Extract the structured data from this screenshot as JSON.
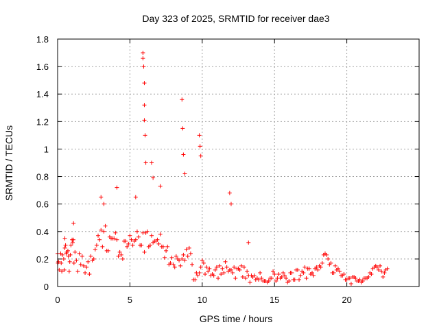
{
  "chart_data": {
    "type": "scatter",
    "title": "Day 323 of 2025, SRMTID for receiver dae3",
    "xlabel": "GPS time / hours",
    "ylabel": "SRMTID / TECUs",
    "xlim": [
      0,
      25
    ],
    "ylim": [
      0,
      1.8
    ],
    "xticks": [
      0,
      5,
      10,
      15,
      20
    ],
    "xtick_labels": [
      "0",
      "5",
      "10",
      "15",
      "20"
    ],
    "yticks": [
      0,
      0.2,
      0.4,
      0.6,
      0.8,
      1.0,
      1.2,
      1.4,
      1.6,
      1.8
    ],
    "ytick_labels": [
      "0",
      "0.2",
      "0.4",
      "0.6",
      "0.8",
      "1",
      "1.2",
      "1.4",
      "1.6",
      "1.8"
    ],
    "grid": true,
    "marker": "+",
    "series": [
      {
        "name": "SRMTID",
        "color": "#ff0000",
        "profile": [
          [
            0.0,
            0.2
          ],
          [
            0.5,
            0.22
          ],
          [
            1.0,
            0.25
          ],
          [
            1.5,
            0.2
          ],
          [
            2.0,
            0.15
          ],
          [
            2.5,
            0.2
          ],
          [
            3.0,
            0.35
          ],
          [
            3.5,
            0.32
          ],
          [
            4.0,
            0.28
          ],
          [
            4.5,
            0.25
          ],
          [
            5.0,
            0.3
          ],
          [
            5.5,
            0.3
          ],
          [
            6.0,
            0.35
          ],
          [
            6.5,
            0.32
          ],
          [
            7.0,
            0.35
          ],
          [
            7.5,
            0.2
          ],
          [
            8.0,
            0.17
          ],
          [
            8.5,
            0.15
          ],
          [
            9.0,
            0.25
          ],
          [
            9.5,
            0.05
          ],
          [
            10.0,
            0.15
          ],
          [
            10.5,
            0.08
          ],
          [
            11.0,
            0.1
          ],
          [
            11.5,
            0.12
          ],
          [
            12.0,
            0.1
          ],
          [
            13.0,
            0.07
          ],
          [
            14.0,
            0.05
          ],
          [
            15.0,
            0.07
          ],
          [
            16.0,
            0.08
          ],
          [
            17.0,
            0.1
          ],
          [
            18.0,
            0.12
          ],
          [
            18.5,
            0.18
          ],
          [
            19.0,
            0.12
          ],
          [
            19.5,
            0.1
          ],
          [
            20.0,
            0.06
          ],
          [
            21.0,
            0.05
          ],
          [
            21.5,
            0.08
          ],
          [
            22.0,
            0.15
          ],
          [
            22.3,
            0.12
          ],
          [
            22.8,
            0.1
          ]
        ],
        "spikes": [
          [
            0.0,
            0.24
          ],
          [
            0.5,
            0.35
          ],
          [
            1.1,
            0.46
          ],
          [
            3.0,
            0.65
          ],
          [
            3.2,
            0.6
          ],
          [
            4.1,
            0.72
          ],
          [
            5.4,
            0.65
          ],
          [
            5.9,
            1.7
          ],
          [
            5.9,
            1.66
          ],
          [
            5.95,
            1.6
          ],
          [
            6.0,
            1.48
          ],
          [
            6.0,
            1.32
          ],
          [
            6.0,
            1.21
          ],
          [
            6.05,
            1.1
          ],
          [
            6.1,
            0.9
          ],
          [
            6.5,
            0.9
          ],
          [
            6.6,
            0.79
          ],
          [
            7.1,
            0.73
          ],
          [
            8.6,
            1.36
          ],
          [
            8.65,
            1.15
          ],
          [
            8.7,
            0.96
          ],
          [
            8.8,
            0.82
          ],
          [
            9.8,
            1.1
          ],
          [
            9.85,
            1.02
          ],
          [
            9.9,
            0.95
          ],
          [
            11.9,
            0.68
          ],
          [
            12.0,
            0.6
          ],
          [
            13.2,
            0.32
          ]
        ],
        "points": [
          [
            0.02,
            0.17
          ],
          [
            0.06,
            0.18
          ],
          [
            0.11,
            0.12
          ],
          [
            0.21,
            0.24
          ],
          [
            0.25,
            0.17
          ],
          [
            0.29,
            0.11
          ],
          [
            0.33,
            0.23
          ],
          [
            0.42,
            0.2
          ],
          [
            0.46,
            0.12
          ],
          [
            0.5,
            0.28
          ],
          [
            0.55,
            0.3
          ],
          [
            0.59,
            0.24
          ],
          [
            0.63,
            0.25
          ],
          [
            0.71,
            0.26
          ],
          [
            0.75,
            0.22
          ],
          [
            0.8,
            0.11
          ],
          [
            0.84,
            0.18
          ],
          [
            0.88,
            0.23
          ],
          [
            0.92,
            0.3
          ],
          [
            1.0,
            0.34
          ],
          [
            1.04,
            0.32
          ],
          [
            1.09,
            0.34
          ],
          [
            1.13,
            0.17
          ],
          [
            1.2,
            0.25
          ],
          [
            1.3,
            0.19
          ],
          [
            1.4,
            0.11
          ],
          [
            1.5,
            0.24
          ],
          [
            1.6,
            0.16
          ],
          [
            1.7,
            0.22
          ],
          [
            1.8,
            0.15
          ],
          [
            1.9,
            0.1
          ],
          [
            2.0,
            0.14
          ],
          [
            2.1,
            0.18
          ],
          [
            2.2,
            0.09
          ],
          [
            2.3,
            0.22
          ],
          [
            2.4,
            0.19
          ],
          [
            2.5,
            0.2
          ],
          [
            2.6,
            0.27
          ],
          [
            2.7,
            0.3
          ],
          [
            2.8,
            0.37
          ],
          [
            2.9,
            0.34
          ],
          [
            3.0,
            0.41
          ],
          [
            3.1,
            0.29
          ],
          [
            3.2,
            0.4
          ],
          [
            3.3,
            0.44
          ],
          [
            3.4,
            0.26
          ],
          [
            3.5,
            0.26
          ],
          [
            3.6,
            0.36
          ],
          [
            3.7,
            0.35
          ],
          [
            3.8,
            0.35
          ],
          [
            3.9,
            0.35
          ],
          [
            4.0,
            0.39
          ],
          [
            4.1,
            0.34
          ],
          [
            4.2,
            0.22
          ],
          [
            4.3,
            0.25
          ],
          [
            4.4,
            0.23
          ],
          [
            4.5,
            0.2
          ],
          [
            4.6,
            0.33
          ],
          [
            4.7,
            0.33
          ],
          [
            4.8,
            0.29
          ],
          [
            4.9,
            0.31
          ],
          [
            5.0,
            0.37
          ],
          [
            5.1,
            0.34
          ],
          [
            5.2,
            0.3
          ],
          [
            5.3,
            0.33
          ],
          [
            5.4,
            0.34
          ],
          [
            5.5,
            0.4
          ],
          [
            5.6,
            0.36
          ],
          [
            5.7,
            0.3
          ],
          [
            5.8,
            0.3
          ],
          [
            5.9,
            0.39
          ],
          [
            6.0,
            0.25
          ],
          [
            6.1,
            0.39
          ],
          [
            6.2,
            0.4
          ],
          [
            6.3,
            0.29
          ],
          [
            6.4,
            0.3
          ],
          [
            6.5,
            0.37
          ],
          [
            6.6,
            0.32
          ],
          [
            6.7,
            0.33
          ],
          [
            6.8,
            0.33
          ],
          [
            6.9,
            0.34
          ],
          [
            7.0,
            0.31
          ],
          [
            7.1,
            0.38
          ],
          [
            7.2,
            0.29
          ],
          [
            7.3,
            0.29
          ],
          [
            7.4,
            0.21
          ],
          [
            7.5,
            0.26
          ],
          [
            7.6,
            0.29
          ],
          [
            7.7,
            0.16
          ],
          [
            7.8,
            0.17
          ],
          [
            7.9,
            0.21
          ],
          [
            8.0,
            0.16
          ],
          [
            8.1,
            0.14
          ],
          [
            8.2,
            0.22
          ],
          [
            8.3,
            0.2
          ],
          [
            8.4,
            0.19
          ],
          [
            8.5,
            0.15
          ],
          [
            8.6,
            0.2
          ],
          [
            8.7,
            0.23
          ],
          [
            8.8,
            0.19
          ],
          [
            8.9,
            0.27
          ],
          [
            9.0,
            0.22
          ],
          [
            9.1,
            0.28
          ],
          [
            9.2,
            0.24
          ],
          [
            9.3,
            0.16
          ],
          [
            9.4,
            0.05
          ],
          [
            9.5,
            0.05
          ],
          [
            9.6,
            0.1
          ],
          [
            9.7,
            0.08
          ],
          [
            9.8,
            0.1
          ],
          [
            9.9,
            0.14
          ],
          [
            10.0,
            0.19
          ],
          [
            10.1,
            0.17
          ],
          [
            10.2,
            0.09
          ],
          [
            10.3,
            0.14
          ],
          [
            10.4,
            0.11
          ],
          [
            10.5,
            0.13
          ],
          [
            10.6,
            0.08
          ],
          [
            10.7,
            0.09
          ],
          [
            10.8,
            0.08
          ],
          [
            10.9,
            0.12
          ],
          [
            11.0,
            0.14
          ],
          [
            11.1,
            0.06
          ],
          [
            11.2,
            0.15
          ],
          [
            11.3,
            0.09
          ],
          [
            11.4,
            0.13
          ],
          [
            11.5,
            0.1
          ],
          [
            11.6,
            0.18
          ],
          [
            11.7,
            0.14
          ],
          [
            11.8,
            0.11
          ],
          [
            11.9,
            0.12
          ],
          [
            12.0,
            0.12
          ],
          [
            12.1,
            0.1
          ],
          [
            12.2,
            0.14
          ],
          [
            12.3,
            0.06
          ],
          [
            12.4,
            0.13
          ],
          [
            12.5,
            0.13
          ],
          [
            12.6,
            0.12
          ],
          [
            12.7,
            0.15
          ],
          [
            12.8,
            0.07
          ],
          [
            12.9,
            0.14
          ],
          [
            13.0,
            0.06
          ],
          [
            13.1,
            0.11
          ],
          [
            13.2,
            0.08
          ],
          [
            13.3,
            0.03
          ],
          [
            13.4,
            0.08
          ],
          [
            13.5,
            0.07
          ],
          [
            13.6,
            0.08
          ],
          [
            13.7,
            0.05
          ],
          [
            13.8,
            0.06
          ],
          [
            13.9,
            0.05
          ],
          [
            14.0,
            0.1
          ],
          [
            14.1,
            0.06
          ],
          [
            14.2,
            0.04
          ],
          [
            14.3,
            0.04
          ],
          [
            14.4,
            0.04
          ],
          [
            14.5,
            0.03
          ],
          [
            14.6,
            0.04
          ],
          [
            14.7,
            0.06
          ],
          [
            14.8,
            0.06
          ],
          [
            14.9,
            0.11
          ],
          [
            15.0,
            0.09
          ],
          [
            15.1,
            0.04
          ],
          [
            15.2,
            0.06
          ],
          [
            15.3,
            0.09
          ],
          [
            15.4,
            0.06
          ],
          [
            15.5,
            0.07
          ],
          [
            15.6,
            0.1
          ],
          [
            15.7,
            0.08
          ],
          [
            15.8,
            0.06
          ],
          [
            15.9,
            0.03
          ],
          [
            16.0,
            0.04
          ],
          [
            16.1,
            0.1
          ],
          [
            16.2,
            0.1
          ],
          [
            16.3,
            0.05
          ],
          [
            16.4,
            0.05
          ],
          [
            16.5,
            0.12
          ],
          [
            16.6,
            0.12
          ],
          [
            16.7,
            0.05
          ],
          [
            16.8,
            0.08
          ],
          [
            16.9,
            0.11
          ],
          [
            17.0,
            0.1
          ],
          [
            17.1,
            0.14
          ],
          [
            17.2,
            0.06
          ],
          [
            17.3,
            0.13
          ],
          [
            17.4,
            0.13
          ],
          [
            17.5,
            0.09
          ],
          [
            17.6,
            0.1
          ],
          [
            17.7,
            0.08
          ],
          [
            17.8,
            0.13
          ],
          [
            17.9,
            0.14
          ],
          [
            18.0,
            0.12
          ],
          [
            18.1,
            0.15
          ],
          [
            18.2,
            0.14
          ],
          [
            18.3,
            0.17
          ],
          [
            18.4,
            0.23
          ],
          [
            18.5,
            0.24
          ],
          [
            18.6,
            0.23
          ],
          [
            18.7,
            0.2
          ],
          [
            18.8,
            0.16
          ],
          [
            18.9,
            0.17
          ],
          [
            19.0,
            0.1
          ],
          [
            19.1,
            0.1
          ],
          [
            19.2,
            0.15
          ],
          [
            19.3,
            0.12
          ],
          [
            19.4,
            0.13
          ],
          [
            19.5,
            0.11
          ],
          [
            19.6,
            0.08
          ],
          [
            19.7,
            0.08
          ],
          [
            19.8,
            0.09
          ],
          [
            19.9,
            0.05
          ],
          [
            20.0,
            0.05
          ],
          [
            20.1,
            0.06
          ],
          [
            20.2,
            0.06
          ],
          [
            20.3,
            0.02
          ],
          [
            20.4,
            0.07
          ],
          [
            20.5,
            0.07
          ],
          [
            20.6,
            0.06
          ],
          [
            20.7,
            0.04
          ],
          [
            20.8,
            0.04
          ],
          [
            20.9,
            0.05
          ],
          [
            21.0,
            0.03
          ],
          [
            21.1,
            0.04
          ],
          [
            21.2,
            0.06
          ],
          [
            21.3,
            0.06
          ],
          [
            21.4,
            0.06
          ],
          [
            21.5,
            0.07
          ],
          [
            21.6,
            0.1
          ],
          [
            21.7,
            0.09
          ],
          [
            21.8,
            0.13
          ],
          [
            21.9,
            0.14
          ],
          [
            22.0,
            0.15
          ],
          [
            22.1,
            0.14
          ],
          [
            22.2,
            0.12
          ],
          [
            22.3,
            0.15
          ],
          [
            22.4,
            0.11
          ],
          [
            22.5,
            0.07
          ],
          [
            22.6,
            0.1
          ],
          [
            22.7,
            0.12
          ],
          [
            22.8,
            0.13
          ]
        ]
      }
    ]
  }
}
